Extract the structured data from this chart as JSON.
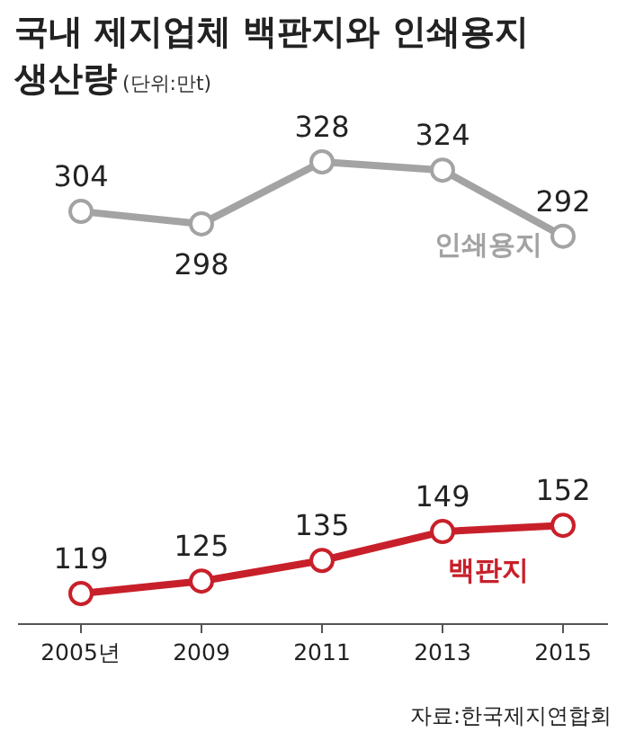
{
  "chart_data": {
    "type": "line",
    "title": "국내 제지업체 백판지와 인쇄용지 생산량",
    "subtitle": "(단위:만t)",
    "categories": [
      "2005년",
      "2009",
      "2011",
      "2013",
      "2015"
    ],
    "series": [
      {
        "name": "인쇄용지",
        "color": "#a3a3a3",
        "values": [
          304,
          298,
          328,
          324,
          292
        ]
      },
      {
        "name": "백판지",
        "color": "#c8202a",
        "values": [
          119,
          125,
          135,
          149,
          152
        ]
      }
    ],
    "data_labels": true,
    "marker": "circle",
    "line_style": "solid",
    "annotations": [
      "자료:한국제지연합회"
    ]
  }
}
